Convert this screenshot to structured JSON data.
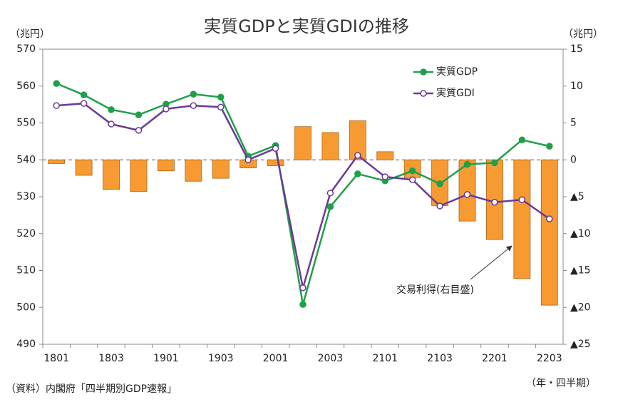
{
  "chart_data": {
    "type": "combo",
    "title": "実質GDPと実質GDIの推移",
    "y_label": "（兆円）",
    "y2_label": "（兆円）",
    "x_label": "（年・四半期）",
    "source": "（資料）内閣府「四半期別GDP速報」",
    "annotation": "交易利得(右目盛)",
    "categories": [
      "1801",
      null,
      "1803",
      null,
      "1901",
      null,
      "1903",
      null,
      "2001",
      null,
      "2003",
      null,
      "2101",
      null,
      "2103",
      null,
      "2201",
      null,
      "2203"
    ],
    "ylim": [
      490,
      570
    ],
    "yticks": [
      490,
      500,
      510,
      520,
      530,
      540,
      550,
      560,
      570
    ],
    "y2lim": [
      -25,
      15
    ],
    "y2ticks": [
      {
        "value": -25,
        "label": "▲25"
      },
      {
        "value": -20,
        "label": "▲20"
      },
      {
        "value": -15,
        "label": "▲15"
      },
      {
        "value": -10,
        "label": "▲10"
      },
      {
        "value": -5,
        "label": "▲5"
      },
      0,
      5,
      10,
      15
    ],
    "grid": false,
    "legend": "upper right",
    "series": [
      {
        "name": "実質GDP",
        "type": "line",
        "color": "#1fa04a",
        "values": [
          560.7,
          557.6,
          553.6,
          552.2,
          555.1,
          557.8,
          557.0,
          541.0,
          543.9,
          500.8,
          527.3,
          536.2,
          534.3,
          537.0,
          533.5,
          538.8,
          539.2,
          545.4,
          543.7
        ]
      },
      {
        "name": "実質GDI",
        "type": "line",
        "color": "#6a3a96",
        "values": [
          554.7,
          555.3,
          549.7,
          548.0,
          553.8,
          554.7,
          554.3,
          540.0,
          543.1,
          505.3,
          531.0,
          541.2,
          535.4,
          534.6,
          527.5,
          530.6,
          528.5,
          529.2,
          524.0
        ]
      },
      {
        "type": "bar",
        "axis": "y2",
        "color": "#f79a32",
        "values": [
          -0.5,
          -2.1,
          -4.0,
          -4.3,
          -1.5,
          -2.9,
          -2.5,
          -1.1,
          -0.8,
          4.5,
          3.7,
          5.3,
          1.1,
          -2.4,
          -6.2,
          -8.3,
          -10.8,
          -16.1,
          -19.7
        ]
      }
    ]
  }
}
